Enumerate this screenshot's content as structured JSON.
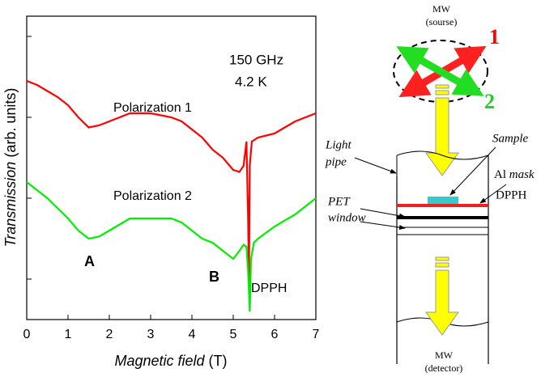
{
  "chart_data": {
    "type": "line",
    "xlabel": {
      "main": "Magnetic field",
      "unit": "(T)"
    },
    "ylabel": {
      "main": "Transmission",
      "unit": "(arb. units)"
    },
    "xlim": [
      0,
      7
    ],
    "xticks": [
      0,
      1,
      2,
      3,
      4,
      5,
      6,
      7
    ],
    "ylim": [
      0,
      7.5
    ],
    "yticks": [
      1,
      3,
      5,
      7
    ],
    "annotations": [
      "150 GHz",
      "4.2 K",
      "Polarization 1",
      "Polarization 2",
      "A",
      "B",
      "DPPH"
    ],
    "series": [
      {
        "name": "Polarization 1",
        "color": "#ff0000",
        "x": [
          0,
          0.25,
          0.5,
          0.75,
          1,
          1.25,
          1.5,
          1.75,
          2,
          2.25,
          2.5,
          2.75,
          3,
          3.25,
          3.5,
          3.75,
          4,
          4.25,
          4.5,
          4.75,
          5,
          5.15,
          5.25,
          5.32,
          5.36,
          5.38,
          5.4,
          5.45,
          5.6,
          5.8,
          6,
          6.25,
          6.5,
          6.75,
          7
        ],
        "values": [
          5.9,
          5.8,
          5.65,
          5.5,
          5.3,
          5.0,
          4.75,
          4.8,
          4.9,
          5.0,
          5.1,
          5.1,
          5.1,
          5.05,
          5.0,
          4.9,
          4.7,
          4.5,
          4.2,
          4.0,
          3.7,
          3.65,
          3.8,
          4.4,
          2.5,
          0.9,
          3.8,
          4.4,
          4.5,
          4.55,
          4.6,
          4.75,
          4.9,
          5.0,
          5.1
        ]
      },
      {
        "name": "Polarization 2",
        "color": "#00ee00",
        "x": [
          0,
          0.25,
          0.5,
          0.75,
          1,
          1.25,
          1.5,
          1.75,
          2,
          2.25,
          2.5,
          2.75,
          3,
          3.25,
          3.5,
          3.75,
          4,
          4.25,
          4.5,
          4.75,
          5,
          5.15,
          5.25,
          5.32,
          5.36,
          5.4,
          5.43,
          5.5,
          5.6,
          5.8,
          6,
          6.25,
          6.5,
          6.75,
          7
        ],
        "values": [
          3.4,
          3.2,
          3.0,
          2.75,
          2.5,
          2.2,
          2.0,
          2.05,
          2.2,
          2.35,
          2.5,
          2.5,
          2.5,
          2.5,
          2.5,
          2.4,
          2.2,
          2.0,
          1.9,
          1.7,
          1.5,
          1.7,
          1.85,
          1.8,
          1.2,
          0.2,
          1.5,
          1.9,
          2.0,
          2.15,
          2.3,
          2.45,
          2.6,
          2.8,
          3.0
        ]
      }
    ]
  },
  "diagram": {
    "source": [
      "MW",
      "(sourse)"
    ],
    "pol1": "1",
    "pol2": "2",
    "light_pipe": [
      "Light",
      "pipe"
    ],
    "sample": "Sample",
    "al_mask": [
      "Al",
      "mask"
    ],
    "pet_window": [
      "PET",
      "window"
    ],
    "dpph": "DPPH",
    "detector": [
      "MW",
      "(detector)"
    ]
  }
}
